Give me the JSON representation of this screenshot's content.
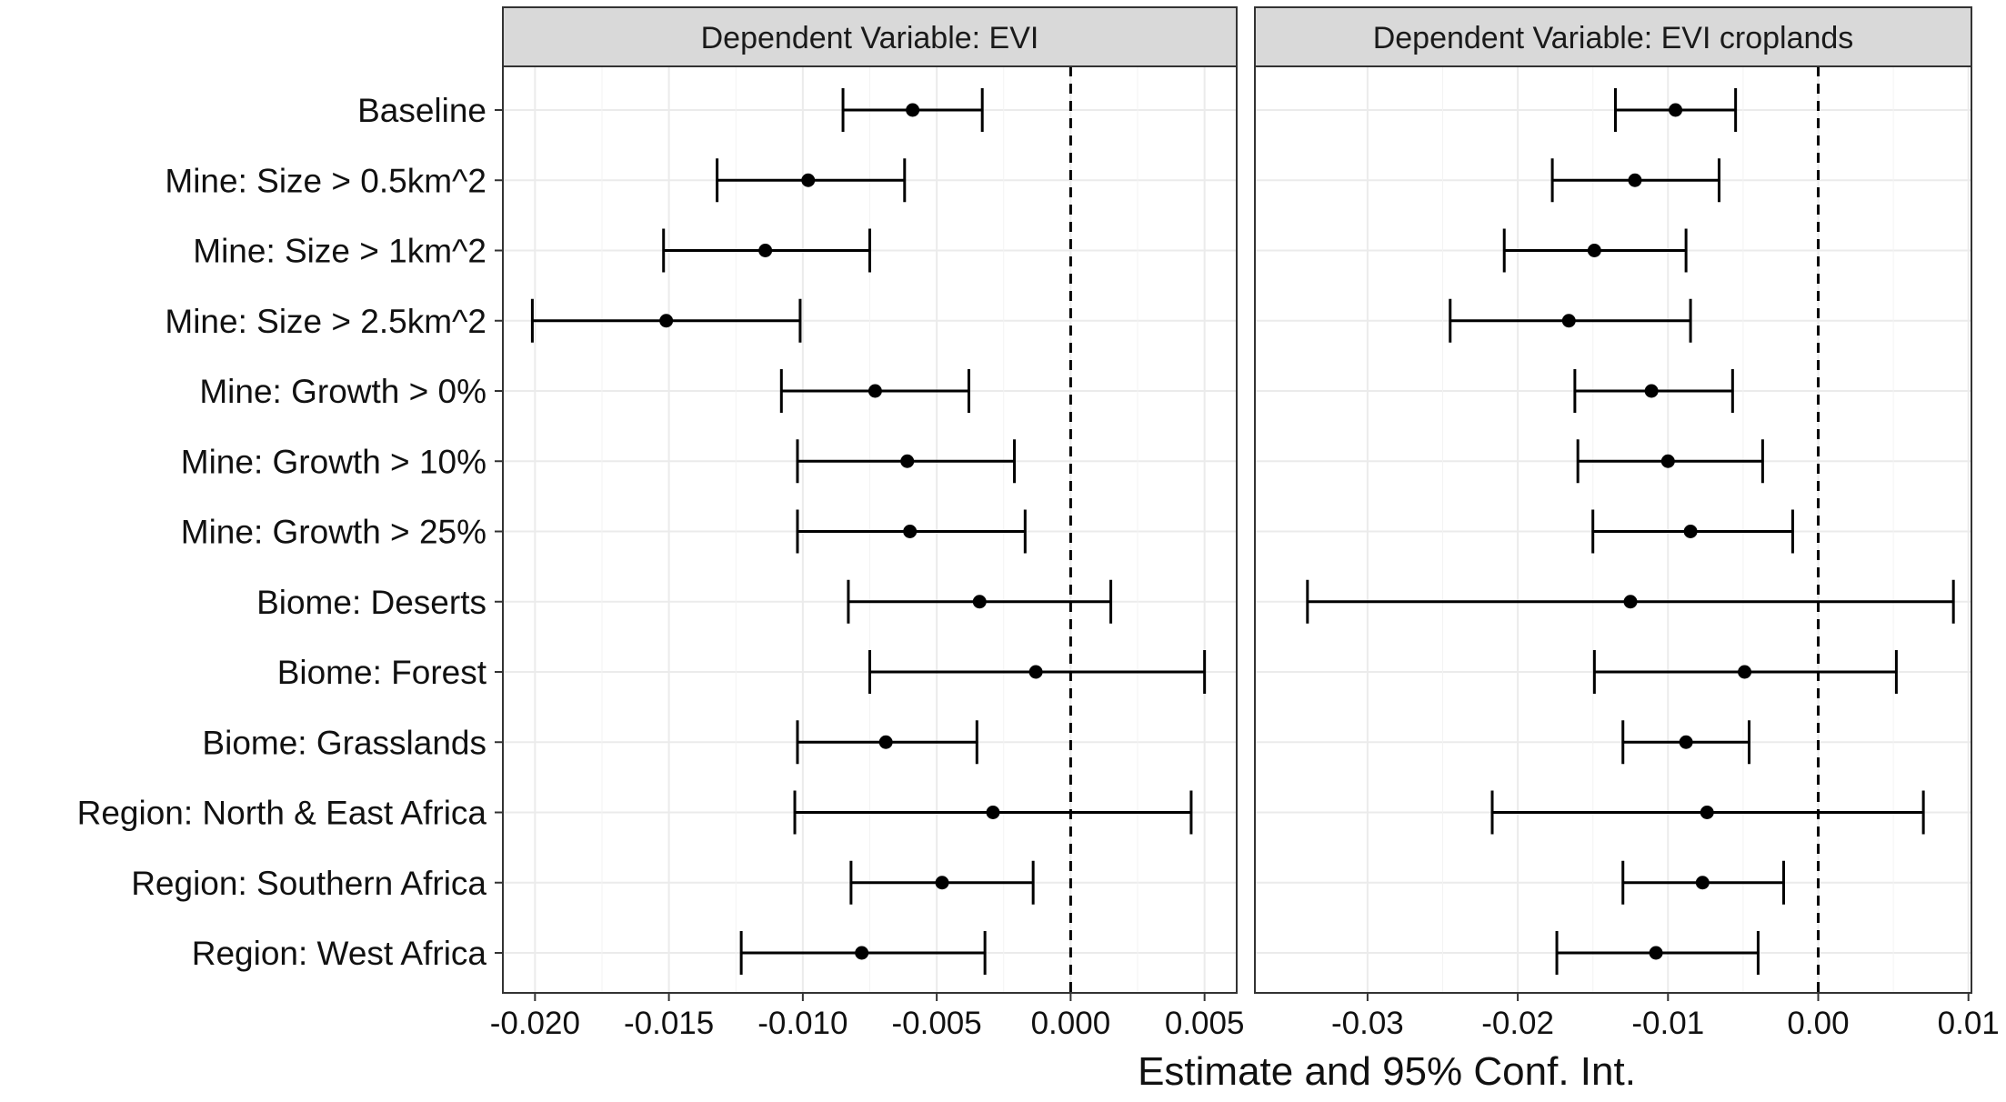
{
  "chart_data": {
    "type": "scatter",
    "style": "coefficient plot with 95% confidence interval error bars, faceted",
    "xlabel": "Estimate and 95% Conf. Int.",
    "categories": [
      "Baseline",
      "Mine: Size > 0.5km^2",
      "Mine: Size > 1km^2",
      "Mine: Size > 2.5km^2",
      "Mine: Growth > 0%",
      "Mine: Growth > 10%",
      "Mine: Growth > 25%",
      "Biome: Deserts",
      "Biome: Forest",
      "Biome: Grasslands",
      "Region: North & East Africa",
      "Region: Southern Africa",
      "Region: West Africa"
    ],
    "reference_line": {
      "x": 0,
      "style": "dashed"
    },
    "grid": true,
    "facets": [
      {
        "strip": "Dependent Variable: EVI",
        "xlim": [
          -0.0212,
          0.0062
        ],
        "xticks": [
          -0.02,
          -0.015,
          -0.01,
          -0.005,
          0.0,
          0.005
        ],
        "xtick_labels": [
          "-0.020",
          "-0.015",
          "-0.010",
          "-0.005",
          "0.000",
          "0.005"
        ],
        "estimates": [
          -0.0059,
          -0.0098,
          -0.0114,
          -0.0151,
          -0.0073,
          -0.0061,
          -0.006,
          -0.0034,
          -0.0013,
          -0.0069,
          -0.0029,
          -0.0048,
          -0.0078
        ],
        "ci_low": [
          -0.0085,
          -0.0132,
          -0.0152,
          -0.0201,
          -0.0108,
          -0.0102,
          -0.0102,
          -0.0083,
          -0.0075,
          -0.0102,
          -0.0103,
          -0.0082,
          -0.0123
        ],
        "ci_high": [
          -0.0033,
          -0.0062,
          -0.0075,
          -0.0101,
          -0.0038,
          -0.0021,
          -0.0017,
          0.0015,
          0.005,
          -0.0035,
          0.0045,
          -0.0014,
          -0.0032
        ]
      },
      {
        "strip": "Dependent Variable: EVI croplands",
        "xlim": [
          -0.0375,
          0.0102
        ],
        "xticks": [
          -0.03,
          -0.02,
          -0.01,
          0.0,
          0.01
        ],
        "xtick_labels": [
          "-0.03",
          "-0.02",
          "-0.01",
          "0.00",
          "0.01"
        ],
        "estimates": [
          -0.0095,
          -0.0122,
          -0.0149,
          -0.0166,
          -0.0111,
          -0.01,
          -0.0085,
          -0.0125,
          -0.0049,
          -0.0088,
          -0.0074,
          -0.0077,
          -0.0108
        ],
        "ci_low": [
          -0.0135,
          -0.0177,
          -0.0209,
          -0.0245,
          -0.0162,
          -0.016,
          -0.015,
          -0.034,
          -0.0149,
          -0.013,
          -0.0217,
          -0.013,
          -0.0174
        ],
        "ci_high": [
          -0.0055,
          -0.0066,
          -0.0088,
          -0.0085,
          -0.0057,
          -0.0037,
          -0.0017,
          0.009,
          0.0052,
          -0.0046,
          0.007,
          -0.0023,
          -0.004
        ]
      }
    ]
  }
}
